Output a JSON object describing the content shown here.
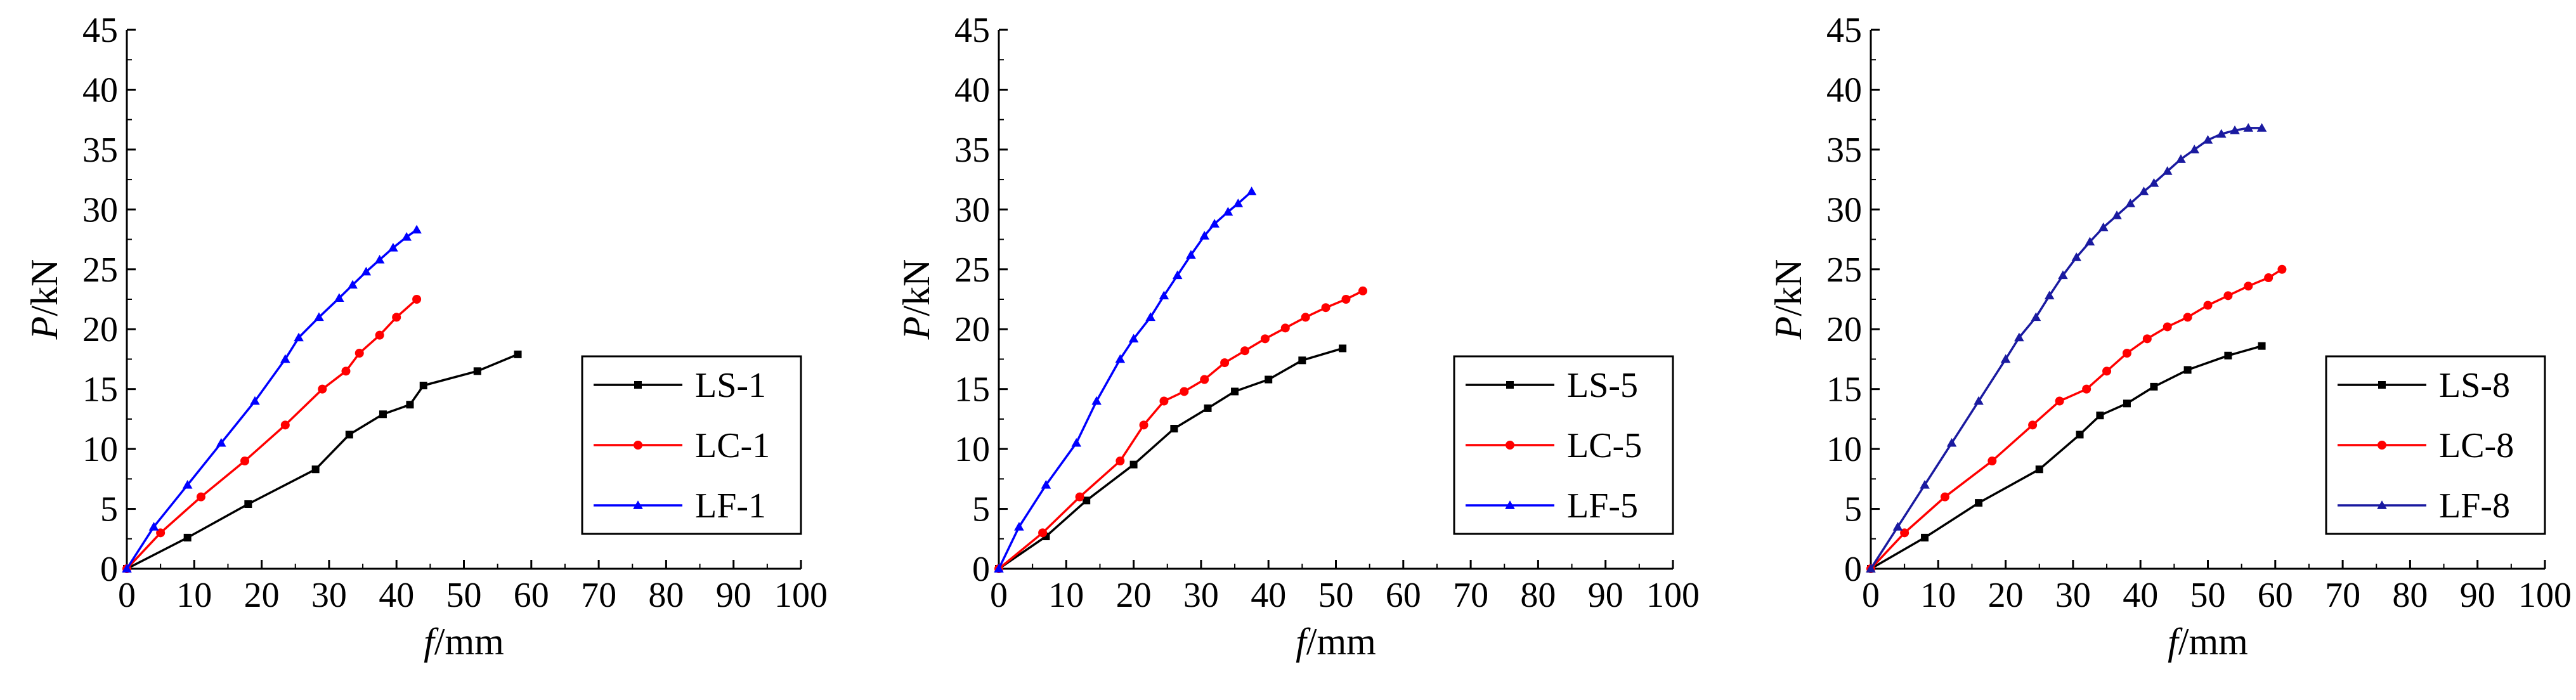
{
  "figure": {
    "panels": 3
  },
  "chart_data": [
    {
      "type": "line",
      "title": "",
      "xlabel": {
        "italic": "f",
        "rest": "/mm"
      },
      "ylabel": {
        "italic": "P",
        "rest": "/kN"
      },
      "xlim": [
        0,
        100
      ],
      "ylim": [
        0,
        45
      ],
      "xticks": [
        "0",
        "10",
        "20",
        "30",
        "40",
        "50",
        "60",
        "70",
        "80",
        "90",
        "100"
      ],
      "yticks": [
        "0",
        "5",
        "10",
        "15",
        "20",
        "25",
        "30",
        "35",
        "40",
        "45"
      ],
      "grid": false,
      "legend_position": "lower-right",
      "series": [
        {
          "name": "LS-1",
          "color": "#000000",
          "marker": "square",
          "x": [
            0,
            9,
            18,
            28,
            33,
            38,
            42,
            44,
            52,
            58
          ],
          "y": [
            0,
            2.6,
            5.4,
            8.3,
            11.2,
            12.9,
            13.7,
            15.3,
            16.5,
            17.9
          ]
        },
        {
          "name": "LC-1",
          "color": "#ff0000",
          "marker": "circle",
          "x": [
            0,
            5,
            11,
            17.5,
            23.5,
            29,
            32.5,
            34.5,
            37.5,
            40,
            43
          ],
          "y": [
            0,
            3,
            6,
            9,
            12,
            15,
            16.5,
            18,
            19.5,
            21,
            22.5
          ]
        },
        {
          "name": "LF-1",
          "color": "#0000ff",
          "marker": "triangle",
          "x": [
            0,
            4,
            9,
            14,
            19,
            23.5,
            25.5,
            28.5,
            31.5,
            33.5,
            35.5,
            37.5,
            39.5,
            41.5,
            43
          ],
          "y": [
            0,
            3.5,
            7,
            10.5,
            14,
            17.5,
            19.3,
            21,
            22.6,
            23.7,
            24.8,
            25.8,
            26.8,
            27.7,
            28.3
          ]
        }
      ]
    },
    {
      "type": "line",
      "title": "",
      "xlabel": {
        "italic": "f",
        "rest": "/mm"
      },
      "ylabel": {
        "italic": "P",
        "rest": "/kN"
      },
      "xlim": [
        0,
        100
      ],
      "ylim": [
        0,
        45
      ],
      "xticks": [
        "0",
        "10",
        "20",
        "30",
        "40",
        "50",
        "60",
        "70",
        "80",
        "90",
        "100"
      ],
      "yticks": [
        "0",
        "5",
        "10",
        "15",
        "20",
        "25",
        "30",
        "35",
        "40",
        "45"
      ],
      "grid": false,
      "legend_position": "lower-right",
      "series": [
        {
          "name": "LS-5",
          "color": "#000000",
          "marker": "square",
          "x": [
            0,
            7,
            13,
            20,
            26,
            31,
            35,
            40,
            45,
            51
          ],
          "y": [
            0,
            2.7,
            5.7,
            8.7,
            11.7,
            13.4,
            14.8,
            15.8,
            17.4,
            18.4
          ]
        },
        {
          "name": "LC-5",
          "color": "#ff0000",
          "marker": "circle",
          "x": [
            0,
            6.5,
            12,
            18,
            21.5,
            24.5,
            27.5,
            30.5,
            33.5,
            36.5,
            39.5,
            42.5,
            45.5,
            48.5,
            51.5,
            54
          ],
          "y": [
            0,
            3,
            6,
            9,
            12,
            14,
            14.8,
            15.8,
            17.2,
            18.2,
            19.2,
            20.1,
            21,
            21.8,
            22.5,
            23.2
          ]
        },
        {
          "name": "LF-5",
          "color": "#0000ff",
          "marker": "triangle",
          "x": [
            0,
            3,
            7,
            11.5,
            14.5,
            18,
            20,
            22.5,
            24.5,
            26.5,
            28.5,
            30.5,
            32,
            34,
            35.5,
            37.5
          ],
          "y": [
            0,
            3.5,
            7,
            10.5,
            14,
            17.5,
            19.2,
            21,
            22.8,
            24.5,
            26.2,
            27.8,
            28.8,
            29.8,
            30.5,
            31.5
          ]
        }
      ]
    },
    {
      "type": "line",
      "title": "",
      "xlabel": {
        "italic": "f",
        "rest": "/mm"
      },
      "ylabel": {
        "italic": "P",
        "rest": "/kN"
      },
      "xlim": [
        0,
        100
      ],
      "ylim": [
        0,
        45
      ],
      "xticks": [
        "0",
        "10",
        "20",
        "30",
        "40",
        "50",
        "60",
        "70",
        "80",
        "90",
        "100"
      ],
      "yticks": [
        "0",
        "5",
        "10",
        "15",
        "20",
        "25",
        "30",
        "35",
        "40",
        "45"
      ],
      "grid": false,
      "legend_position": "lower-right",
      "series": [
        {
          "name": "LS-8",
          "color": "#000000",
          "marker": "square",
          "x": [
            0,
            8,
            16,
            25,
            31,
            34,
            38,
            42,
            47,
            53,
            58
          ],
          "y": [
            0,
            2.6,
            5.5,
            8.3,
            11.2,
            12.8,
            13.8,
            15.2,
            16.6,
            17.8,
            18.6
          ]
        },
        {
          "name": "LC-8",
          "color": "#ff0000",
          "marker": "circle",
          "x": [
            0,
            5,
            11,
            18,
            24,
            28,
            32,
            35,
            38,
            41,
            44,
            47,
            50,
            53,
            56,
            59,
            61
          ],
          "y": [
            0,
            3,
            6,
            9,
            12,
            14,
            15,
            16.5,
            18,
            19.2,
            20.2,
            21,
            22,
            22.8,
            23.6,
            24.3,
            25
          ]
        },
        {
          "name": "LF-8",
          "color": "#1a1aa0",
          "marker": "triangle",
          "x": [
            0,
            4,
            8,
            12,
            16,
            20,
            22,
            24.5,
            26.5,
            28.5,
            30.5,
            32.5,
            34.5,
            36.5,
            38.5,
            40.5,
            42,
            44,
            46,
            48,
            50,
            52,
            54,
            56,
            58
          ],
          "y": [
            0,
            3.5,
            7,
            10.5,
            14,
            17.5,
            19.3,
            21,
            22.8,
            24.5,
            26,
            27.3,
            28.5,
            29.5,
            30.5,
            31.5,
            32.2,
            33.2,
            34.2,
            35,
            35.8,
            36.3,
            36.6,
            36.8,
            36.8
          ]
        }
      ]
    }
  ]
}
